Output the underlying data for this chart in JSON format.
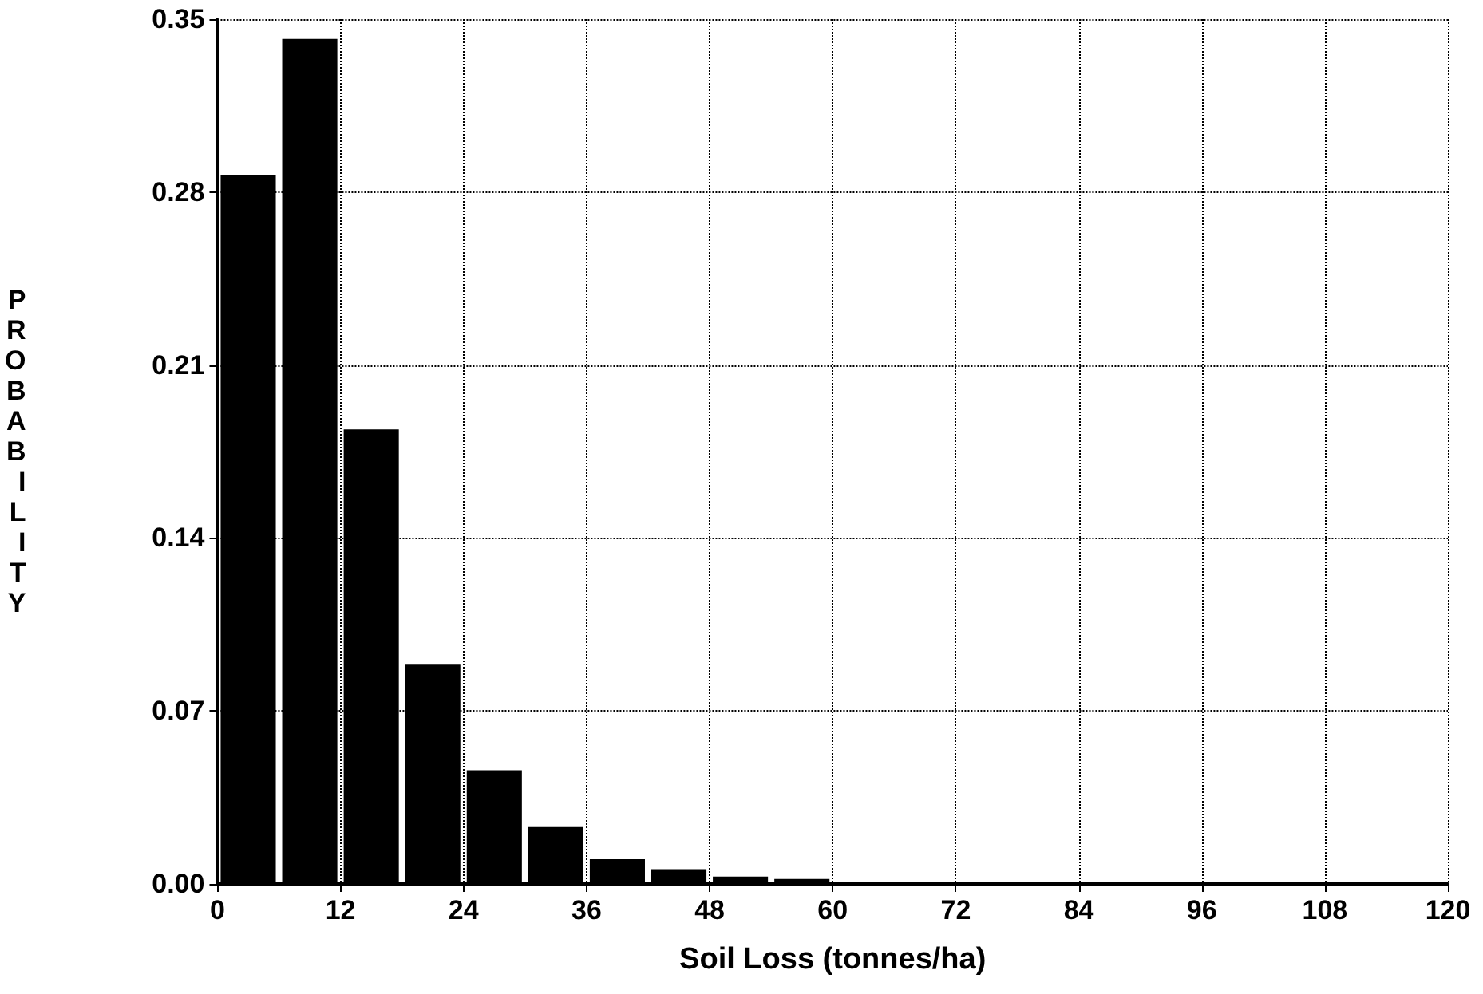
{
  "chart_data": {
    "type": "histogram",
    "xlabel": "Soil Loss (tonnes/ha)",
    "ylabel": "PROBABILITY",
    "bins": [
      0,
      6,
      12,
      18,
      24,
      30,
      36,
      42,
      48,
      54,
      60,
      66,
      72,
      78,
      84,
      90,
      96,
      102,
      108,
      114,
      120
    ],
    "values": [
      0.287,
      0.342,
      0.184,
      0.089,
      0.046,
      0.023,
      0.01,
      0.006,
      0.003,
      0.002,
      0.0005,
      0.0005,
      0.0005,
      0,
      0,
      0,
      0,
      0,
      0,
      0
    ],
    "color": "#000000",
    "xlim": [
      0,
      120
    ],
    "xticks": [
      0,
      12,
      24,
      36,
      48,
      60,
      72,
      84,
      96,
      108,
      120
    ],
    "ylim": [
      0,
      0.35
    ],
    "yticks": [
      "0.00",
      0.07,
      0.14,
      0.21,
      0.28,
      0.35
    ],
    "grid": true
  }
}
